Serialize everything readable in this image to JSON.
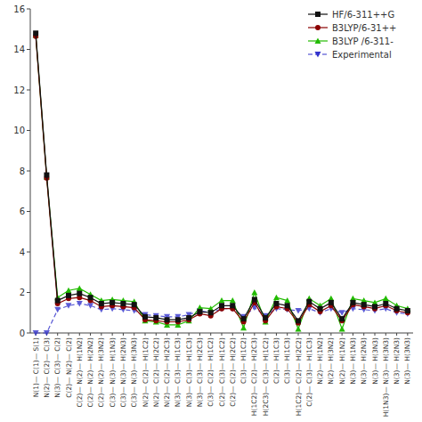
{
  "chart_data": {
    "type": "line",
    "categories": [
      "N(1)—\nC(1)—\nS(1)",
      "N(2)—\nC(2)—\nC(3)",
      "N(3)—\nC(3)—\nC(2)",
      "C(2)—\nN(2)—\nC(2)",
      "C(2)—\nN(2)—\nH(1N2)",
      "C(2)—\nN(2)—\nH(2N2)",
      "C(2)—\nN(2)—\nH(3N2)",
      "C(3)—\nN(3)—\nH(1N3)",
      "C(3)—\nN(3)—\nH(2N3)",
      "C(3)—\nN(3)—\nH(3N3)",
      "N(2)—\nC(2)—\nH(1C2)",
      "N(2)—\nC(2)—\nH(2C2)",
      "N(2)—\nC(2)—\nH(2C3)",
      "N(3)—\nC(3)—\nH(1C3)",
      "N(3)—\nC(3)—\nH(1C3)",
      "N(3)—\nC(3)—\nH(2C3)",
      "C(3)—\nC(2)—\nH(1C2)",
      "C(2)—\nC(3)—\nH(1C2)",
      "C(2)—\nC(2)—\nH(2C2)",
      "C(3)—\nH(1C2)",
      "H(1C2)—\nC(2)—\nH(2C3)",
      "H(2C3)—\nC(3)—\nH(1C2)",
      "C(2)—\nH(1C3)",
      "C(3)—\nH(1C3)",
      "H(1C2)—\nC(2)—\nH(2C2)",
      "C(2)—\nC(3)—\nH(1C3)",
      "N(2)—\nH(1N2)",
      "N(2)—\nH(3N2)",
      "N(2)—\nH(1N2)",
      "N(3)—\nH(1N3)",
      "N(3)—\nH(2N3)",
      "N(3)—\nH(3N3)",
      "H(1N3)—\nN(3)—\nH(3N3)",
      "N(3)—\nH(2N3)",
      "N(3)—\nH(3N3)"
    ],
    "series": [
      {
        "name": "HF/6-311++G",
        "color": "#111111",
        "marker": "square",
        "line_style": "solid",
        "values": [
          14.8,
          7.8,
          1.6,
          1.85,
          1.95,
          1.75,
          1.45,
          1.5,
          1.45,
          1.4,
          0.8,
          0.75,
          0.65,
          0.65,
          0.75,
          1.05,
          1.0,
          1.35,
          1.35,
          0.7,
          1.65,
          0.75,
          1.45,
          1.35,
          0.6,
          1.55,
          1.2,
          1.5,
          0.7,
          1.5,
          1.4,
          1.3,
          1.45,
          1.2,
          1.1
        ]
      },
      {
        "name": "B3LYP/6-31++",
        "color": "#8B0000",
        "marker": "circle",
        "line_style": "solid",
        "values": [
          14.65,
          7.65,
          1.45,
          1.7,
          1.75,
          1.6,
          1.3,
          1.35,
          1.3,
          1.25,
          0.65,
          0.6,
          0.55,
          0.55,
          0.65,
          0.95,
          0.85,
          1.2,
          1.2,
          0.55,
          1.5,
          0.6,
          1.3,
          1.2,
          0.5,
          1.4,
          1.05,
          1.35,
          0.6,
          1.4,
          1.3,
          1.2,
          1.35,
          1.1,
          1.0
        ]
      },
      {
        "name": "B3LYP /6-311-",
        "color": "#22BB00",
        "marker": "triangle-up",
        "line_style": "solid",
        "values": [
          14.7,
          7.7,
          1.75,
          2.1,
          2.2,
          1.9,
          1.6,
          1.65,
          1.6,
          1.55,
          0.6,
          0.55,
          0.4,
          0.4,
          0.6,
          1.25,
          1.2,
          1.6,
          1.6,
          0.25,
          2.0,
          0.55,
          1.75,
          1.6,
          0.2,
          1.7,
          1.35,
          1.7,
          0.2,
          1.7,
          1.6,
          1.5,
          1.7,
          1.35,
          1.2
        ]
      },
      {
        "name": "Experimental",
        "color": "#3333CC",
        "marker": "triangle-down",
        "line_style": "dashed",
        "values": [
          0.0,
          0.0,
          1.15,
          1.35,
          1.45,
          1.35,
          1.15,
          1.2,
          1.15,
          1.1,
          0.9,
          0.85,
          0.8,
          0.8,
          0.9,
          1.1,
          1.0,
          1.2,
          1.2,
          0.8,
          1.25,
          0.85,
          1.2,
          1.15,
          1.1,
          1.2,
          1.0,
          1.2,
          1.0,
          1.2,
          1.15,
          1.1,
          1.2,
          1.0,
          0.95
        ]
      }
    ],
    "ylim": [
      0,
      16
    ],
    "yticks": [
      0,
      2,
      4,
      6,
      8,
      10,
      12,
      14,
      16
    ],
    "grid": false,
    "legend": "upper right"
  }
}
